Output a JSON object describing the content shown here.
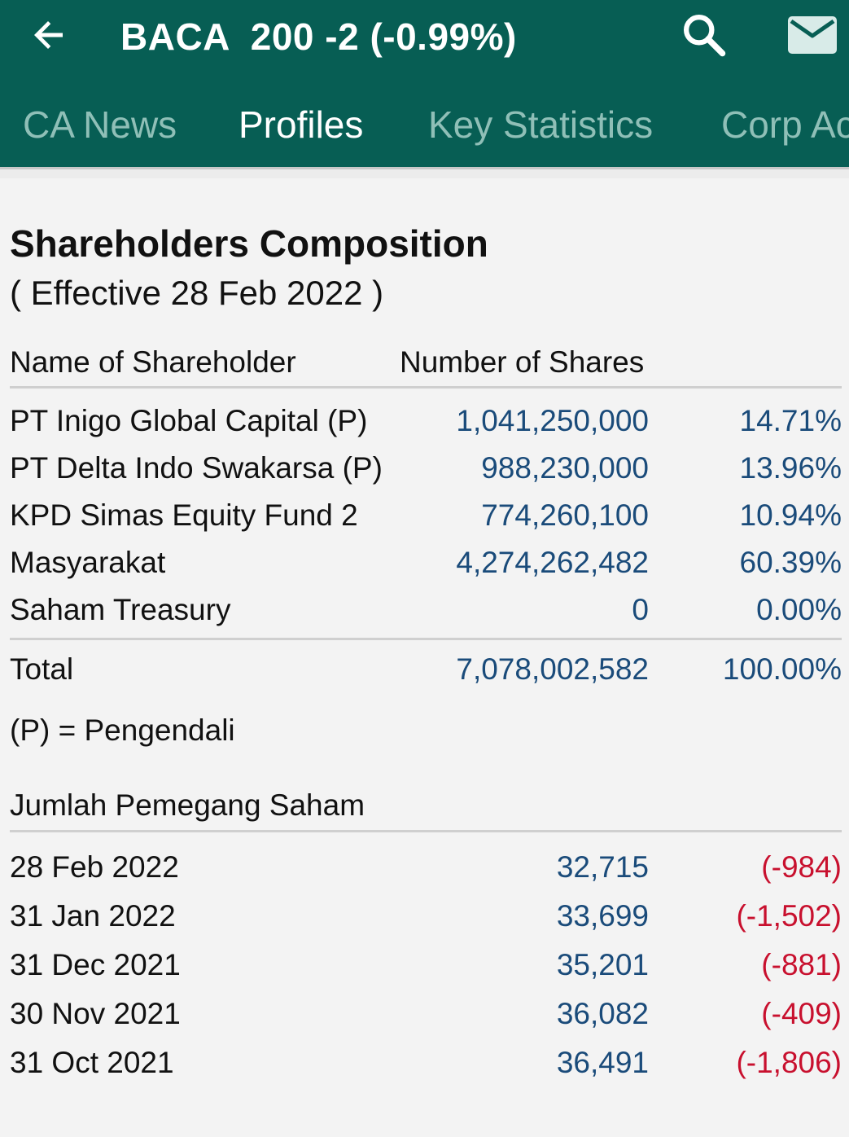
{
  "header": {
    "title": "BACA  200 -2 (-0.99%)",
    "back_icon": "arrow-left-icon",
    "search_icon": "search-icon",
    "mail_icon": "mail-icon",
    "bar_color": "#075e54"
  },
  "tabs": [
    {
      "label": "CA News",
      "active": false
    },
    {
      "label": "Profiles",
      "active": true
    },
    {
      "label": "Key Statistics",
      "active": false
    },
    {
      "label": "Corp Ac",
      "active": false
    }
  ],
  "shareholders": {
    "title": "Shareholders Composition",
    "effective": "( Effective 28 Feb 2022 )",
    "col_name": "Name of Shareholder",
    "col_shares": "Number of Shares",
    "rows": [
      {
        "name": "PT Inigo Global Capital (P)",
        "shares": "1,041,250,000",
        "pct": "14.71%"
      },
      {
        "name": "PT Delta Indo Swakarsa (P)",
        "shares": "988,230,000",
        "pct": "13.96%"
      },
      {
        "name": "KPD Simas Equity Fund 2",
        "shares": "774,260,100",
        "pct": "10.94%"
      },
      {
        "name": "Masyarakat",
        "shares": "4,274,262,482",
        "pct": "60.39%"
      },
      {
        "name": "Saham Treasury",
        "shares": "0",
        "pct": "0.00%"
      }
    ],
    "total": {
      "label": "Total",
      "shares": "7,078,002,582",
      "pct": "100.00%"
    },
    "note": "(P) = Pengendali"
  },
  "holders_count": {
    "title": "Jumlah Pemegang Saham",
    "rows": [
      {
        "date": "28 Feb 2022",
        "count": "32,715",
        "change": "(-984)"
      },
      {
        "date": "31 Jan 2022",
        "count": "33,699",
        "change": "(-1,502)"
      },
      {
        "date": "31 Dec 2021",
        "count": "35,201",
        "change": "(-881)"
      },
      {
        "date": "30 Nov 2021",
        "count": "36,082",
        "change": "(-409)"
      },
      {
        "date": "31 Oct 2021",
        "count": "36,491",
        "change": "(-1,806)"
      }
    ],
    "negative_color": "#c8102e",
    "value_color": "#1a4b7a"
  }
}
